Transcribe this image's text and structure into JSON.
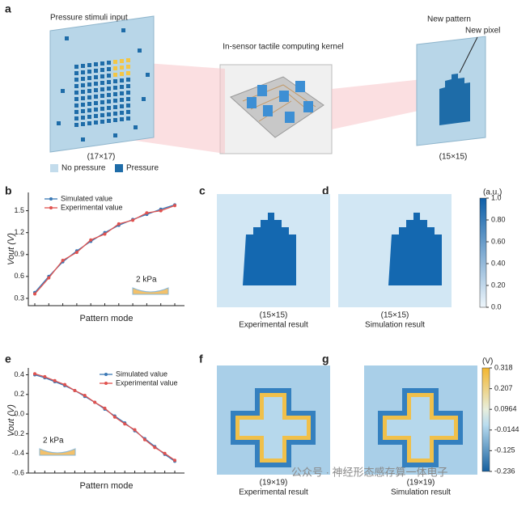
{
  "panel_labels": [
    "a",
    "b",
    "c",
    "d",
    "e",
    "f",
    "g"
  ],
  "panel_a": {
    "input_title": "Pressure stimuli input",
    "input_size": "(17×17)",
    "legend": [
      "No pressure",
      "Pressure"
    ],
    "kernel_title": "In-sensor tactile computing kernel",
    "output_title": "New pattern",
    "new_pixel": "New pixel",
    "output_size": "(15×15)"
  },
  "chart_data": [
    {
      "type": "line",
      "x_label": "Pattern mode",
      "y_label": "Vout (V)",
      "annotation": "2 kPa",
      "categories": [
        null,
        null,
        null,
        null,
        null,
        null,
        null,
        null,
        null,
        null,
        null
      ],
      "series": [
        {
          "name": "Simulated value",
          "color": "#3a78b5",
          "values": [
            0.38,
            0.6,
            0.8,
            0.95,
            1.08,
            1.2,
            1.3,
            1.38,
            1.45,
            1.52,
            1.58
          ]
        },
        {
          "name": "Experimental value",
          "color": "#e0524f",
          "values": [
            0.36,
            0.58,
            0.82,
            0.93,
            1.1,
            1.18,
            1.32,
            1.37,
            1.47,
            1.5,
            1.57
          ]
        }
      ],
      "ylim": [
        0.2,
        1.75
      ],
      "yticks": [
        0.3,
        0.6,
        0.9,
        1.2,
        1.5
      ],
      "legend": "upper left"
    },
    {
      "type": "line",
      "x_label": "Pattern mode",
      "y_label": "Vout (V)",
      "annotation": "2 kPa",
      "categories": [
        null,
        null,
        null,
        null,
        null,
        null,
        null,
        null,
        null,
        null,
        null,
        null,
        null,
        null,
        null
      ],
      "series": [
        {
          "name": "Simulated value",
          "color": "#3a78b5",
          "values": [
            0.4,
            0.37,
            0.33,
            0.29,
            0.24,
            0.18,
            0.12,
            0.05,
            -0.02,
            -0.09,
            -0.17,
            -0.25,
            -0.33,
            -0.41,
            -0.48
          ]
        },
        {
          "name": "Experimental value",
          "color": "#e0524f",
          "values": [
            0.41,
            0.38,
            0.34,
            0.3,
            0.24,
            0.19,
            0.12,
            0.06,
            -0.03,
            -0.1,
            -0.16,
            -0.26,
            -0.34,
            -0.4,
            -0.47
          ]
        }
      ],
      "ylim": [
        -0.6,
        0.47
      ],
      "yticks": [
        0.4,
        0.2,
        {
          "value": 0,
          "label": "0.0"
        },
        -0.2,
        -0.4,
        -0.6
      ],
      "legend": "upper right"
    }
  ],
  "heatmaps": [
    {
      "size": "(15×15)",
      "caption": "Experimental result"
    },
    {
      "size": "(15×15)",
      "caption": "Simulation result"
    },
    {
      "size": "(19×19)",
      "caption": "Experimental result"
    },
    {
      "size": "(19×19)",
      "caption": "Simulation result"
    }
  ],
  "colorbars": [
    {
      "unit": "(a.u.)",
      "lim": [
        0,
        1
      ],
      "ticks": [
        {
          "value": 1,
          "label": "1.0"
        },
        {
          "value": 0.8,
          "label": "0.80"
        },
        {
          "value": 0.6,
          "label": "0.60"
        },
        {
          "value": 0.4,
          "label": "0.40"
        },
        {
          "value": 0.2,
          "label": "0.20"
        },
        {
          "value": 0,
          "label": "0.0"
        }
      ]
    },
    {
      "unit": "(V)",
      "lim": [
        -0.236,
        0.318
      ],
      "ticks": [
        0.318,
        0.207,
        0.0964,
        -0.0144,
        -0.125,
        -0.236
      ]
    }
  ],
  "watermark": "公众号 · 神经形态感存算一体电子"
}
